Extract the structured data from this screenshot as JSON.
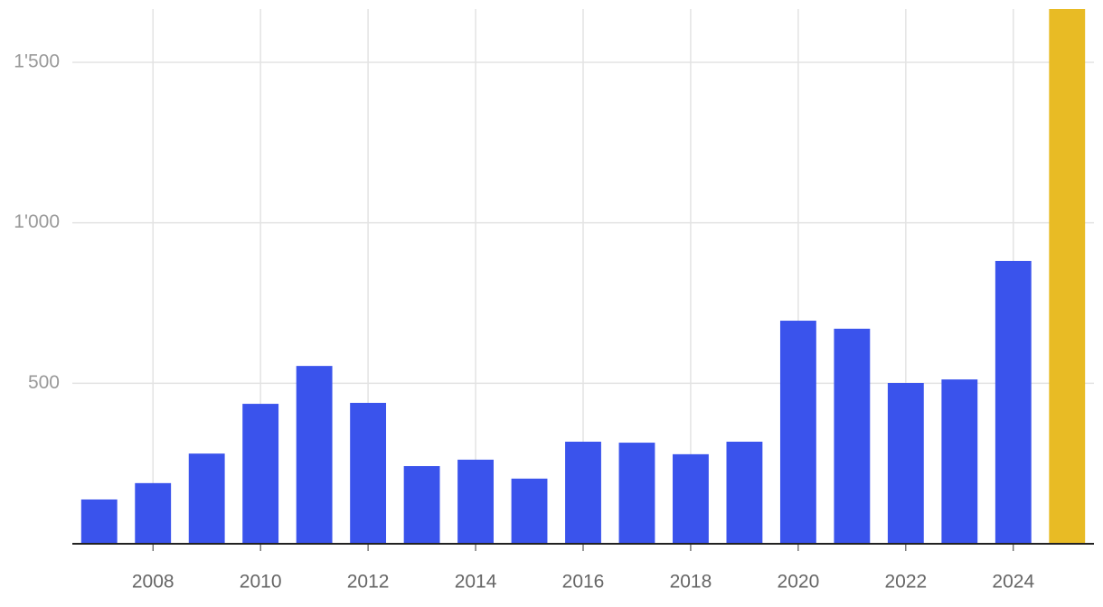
{
  "chart_data": {
    "type": "bar",
    "x": [
      2007,
      2008,
      2009,
      2010,
      2011,
      2012,
      2013,
      2014,
      2015,
      2016,
      2017,
      2018,
      2019,
      2020,
      2021,
      2022,
      2023,
      2024,
      2025
    ],
    "values": [
      138,
      189,
      281,
      436,
      554,
      439,
      242,
      262,
      203,
      318,
      315,
      279,
      318,
      695,
      670,
      501,
      512,
      881,
      1666
    ],
    "colors": [
      "#3a53ec",
      "#3a53ec",
      "#3a53ec",
      "#3a53ec",
      "#3a53ec",
      "#3a53ec",
      "#3a53ec",
      "#3a53ec",
      "#3a53ec",
      "#3a53ec",
      "#3a53ec",
      "#3a53ec",
      "#3a53ec",
      "#3a53ec",
      "#3a53ec",
      "#3a53ec",
      "#3a53ec",
      "#3a53ec",
      "#e8bb25"
    ],
    "xlim": [
      2006.5,
      2025.5
    ],
    "xticks": [
      2008,
      2010,
      2012,
      2014,
      2016,
      2018,
      2020,
      2022,
      2024
    ],
    "ylim": [
      0,
      1666
    ],
    "yticks": [
      500,
      {
        "value": 1000,
        "label": "1'000"
      },
      {
        "value": 1500,
        "label": "1'500"
      }
    ],
    "grid": true
  }
}
